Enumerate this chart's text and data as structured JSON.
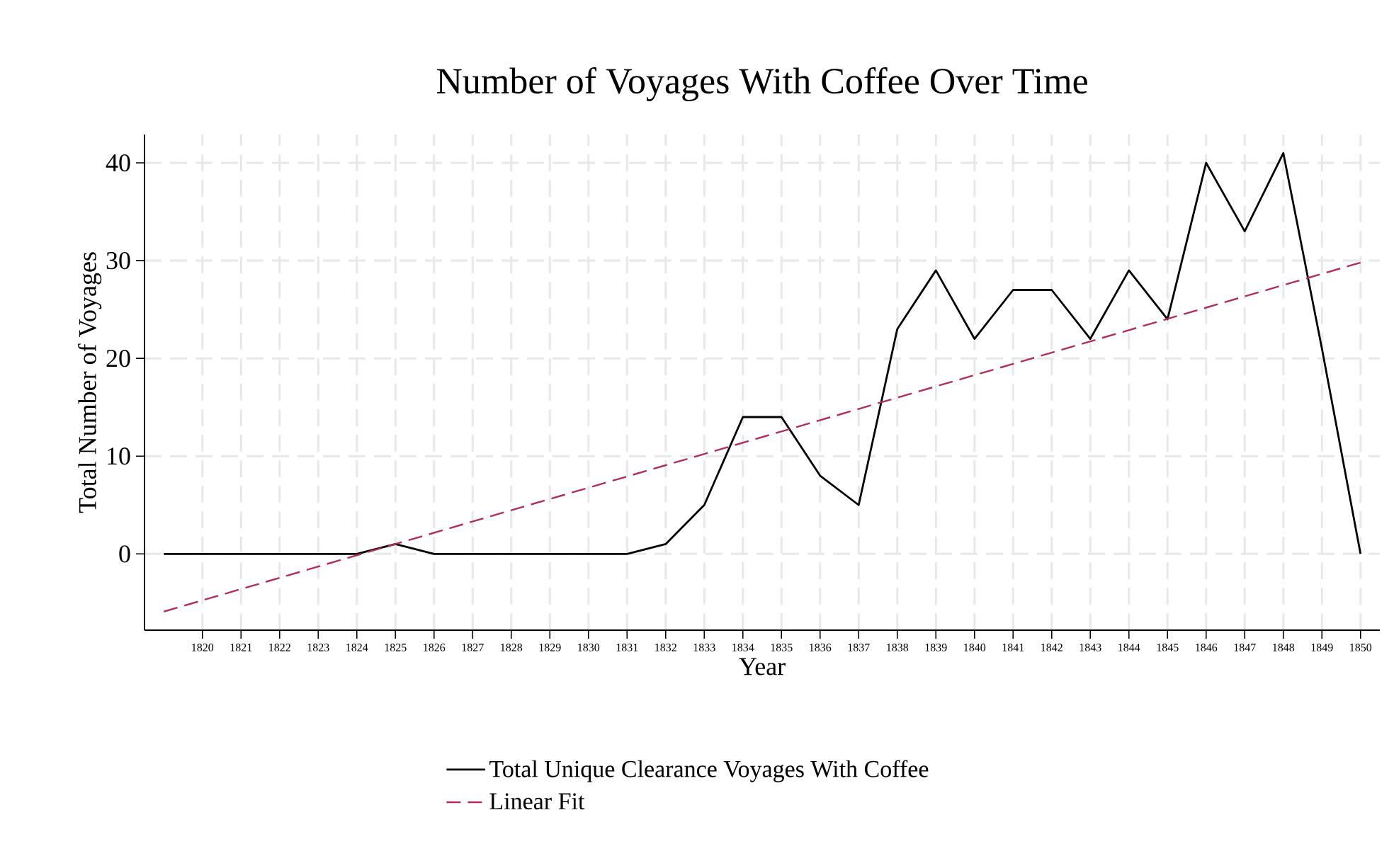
{
  "chart_data": {
    "type": "line",
    "title": "Number of Voyages With Coffee Over Time",
    "xlabel": "Year",
    "ylabel": "Total Number of Voyages",
    "xlim": [
      1818.5,
      1850.5
    ],
    "ylim": [
      -7.8,
      42.9
    ],
    "xticks": [
      1820,
      1821,
      1822,
      1823,
      1824,
      1825,
      1826,
      1827,
      1828,
      1829,
      1830,
      1831,
      1832,
      1833,
      1834,
      1835,
      1836,
      1837,
      1838,
      1839,
      1840,
      1841,
      1842,
      1843,
      1844,
      1845,
      1846,
      1847,
      1848,
      1849,
      1850
    ],
    "yticks": [
      0,
      10,
      20,
      30,
      40
    ],
    "grid": true,
    "legend": "bottom",
    "series": [
      {
        "name": "Total Unique Clearance Voyages With Coffee",
        "color": "#000000",
        "line_style": "solid",
        "x": [
          1819,
          1820,
          1821,
          1822,
          1823,
          1824,
          1825,
          1826,
          1827,
          1828,
          1829,
          1830,
          1831,
          1832,
          1833,
          1834,
          1835,
          1836,
          1837,
          1838,
          1839,
          1840,
          1841,
          1842,
          1843,
          1844,
          1845,
          1846,
          1847,
          1848,
          1849,
          1850
        ],
        "values": [
          0,
          0,
          0,
          0,
          0,
          0,
          1,
          0,
          0,
          0,
          0,
          0,
          0,
          1,
          5,
          14,
          14,
          8,
          5,
          23,
          29,
          22,
          27,
          27,
          22,
          29,
          24,
          40,
          33,
          41,
          21,
          0
        ]
      },
      {
        "name": "Linear Fit",
        "color": "#b22d5b",
        "line_style": "dashed",
        "x": [
          1819,
          1850
        ],
        "values": [
          -5.9,
          29.8
        ]
      }
    ]
  }
}
